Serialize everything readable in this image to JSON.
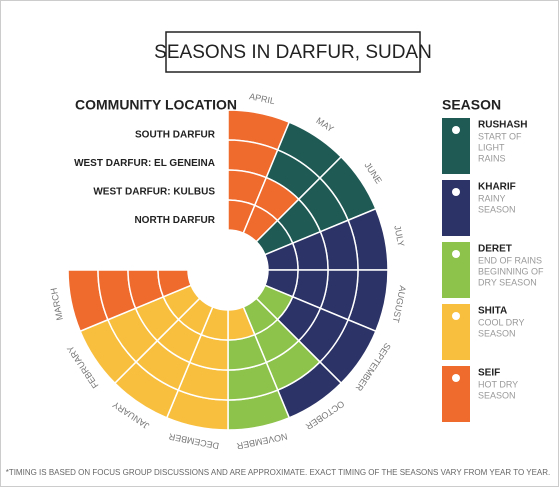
{
  "title": "SEASONS IN DARFUR, SUDAN",
  "locations_heading": "COMMUNITY LOCATION",
  "season_heading": "SEASON",
  "months": [
    "APRIL",
    "MAY",
    "JUNE",
    "JULY",
    "AUGUST",
    "SEPTEMBER",
    "OCTOBER",
    "NOVEMBER",
    "DECEMBER",
    "JANUARY",
    "FEBRUARY",
    "MARCH"
  ],
  "seasons": [
    {
      "name": "RUSHASH",
      "description": [
        "START OF",
        "LIGHT",
        "RAINS"
      ],
      "color": "#1f5a55"
    },
    {
      "name": "KHARIF",
      "description": [
        "RAINY",
        "SEASON"
      ],
      "color": "#2c3366"
    },
    {
      "name": "DERET",
      "description": [
        "END OF RAINS",
        "BEGINNING OF",
        "DRY SEASON"
      ],
      "color": "#8dc24b"
    },
    {
      "name": "SHITA",
      "description": [
        "COOL DRY",
        "SEASON"
      ],
      "color": "#f8bf3f"
    },
    {
      "name": "SEIF",
      "description": [
        "HOT DRY",
        "SEASON"
      ],
      "color": "#ee6a2d"
    }
  ],
  "locations": [
    {
      "name": "SOUTH DARFUR",
      "seasons": [
        "SEIF",
        "RUSHASH",
        "RUSHASH",
        "KHARIF",
        "KHARIF",
        "KHARIF",
        "KHARIF",
        "DERET",
        "SHITA",
        "SHITA",
        "SHITA",
        "SEIF"
      ]
    },
    {
      "name": "WEST DARFUR: EL GENEINA",
      "seasons": [
        "SEIF",
        "RUSHASH",
        "RUSHASH",
        "KHARIF",
        "KHARIF",
        "KHARIF",
        "DERET",
        "DERET",
        "SHITA",
        "SHITA",
        "SHITA",
        "SEIF"
      ]
    },
    {
      "name": "WEST DARFUR: KULBUS",
      "seasons": [
        "SEIF",
        "SEIF",
        "RUSHASH",
        "KHARIF",
        "KHARIF",
        "KHARIF",
        "DERET",
        "DERET",
        "SHITA",
        "SHITA",
        "SHITA",
        "SEIF"
      ]
    },
    {
      "name": "NORTH DARFUR",
      "seasons": [
        "SEIF",
        "SEIF",
        "RUSHASH",
        "KHARIF",
        "KHARIF",
        "DERET",
        "DERET",
        "SHITA",
        "SHITA",
        "SHITA",
        "SHITA",
        "SEIF"
      ]
    }
  ],
  "footnote": "*TIMING IS BASED ON FOCUS GROUP DISCUSSIONS AND ARE APPROXIMATE. EXACT TIMING OF THE SEASONS VARY FROM YEAR TO YEAR."
}
